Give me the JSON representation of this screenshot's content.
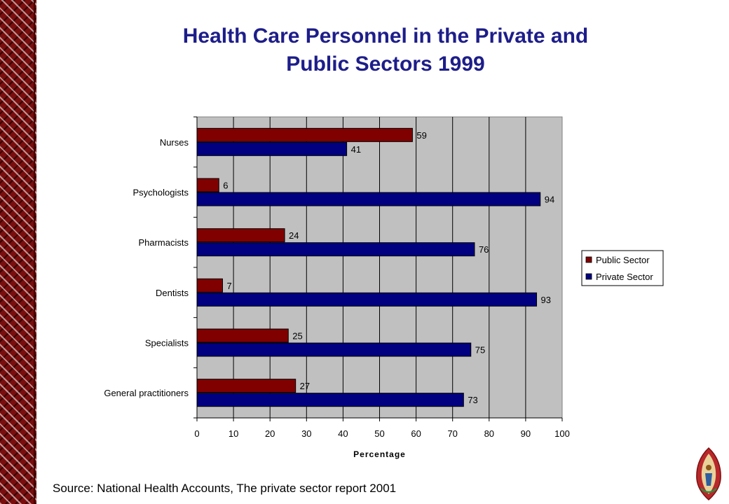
{
  "title": {
    "line1": "Health Care Personnel in the Private and",
    "line2": "Public Sectors 1999"
  },
  "source": "Source: National Health Accounts, The private sector report 2001",
  "colors": {
    "public": "#800000",
    "private": "#000080",
    "plot_bg": "#c0c0c0",
    "title": "#1d1d8a",
    "border": "#7a0d0d"
  },
  "chart_data": {
    "type": "bar",
    "orientation": "horizontal",
    "categories": [
      "Nurses",
      "Psychologists",
      "Pharmacists",
      "Dentists",
      "Specialists",
      "General practitioners"
    ],
    "series": [
      {
        "name": "Public Sector",
        "values": [
          59,
          6,
          24,
          7,
          25,
          27
        ]
      },
      {
        "name": "Private Sector",
        "values": [
          41,
          94,
          76,
          93,
          75,
          73
        ]
      }
    ],
    "xlabel": "Percentage",
    "ylabel": "",
    "xlim": [
      0,
      100
    ],
    "xticks": [
      "0",
      "10",
      "20",
      "30",
      "40",
      "50",
      "60",
      "70",
      "80",
      "90",
      "100"
    ],
    "grid": "vertical",
    "legend": "right",
    "data_labels": true
  }
}
